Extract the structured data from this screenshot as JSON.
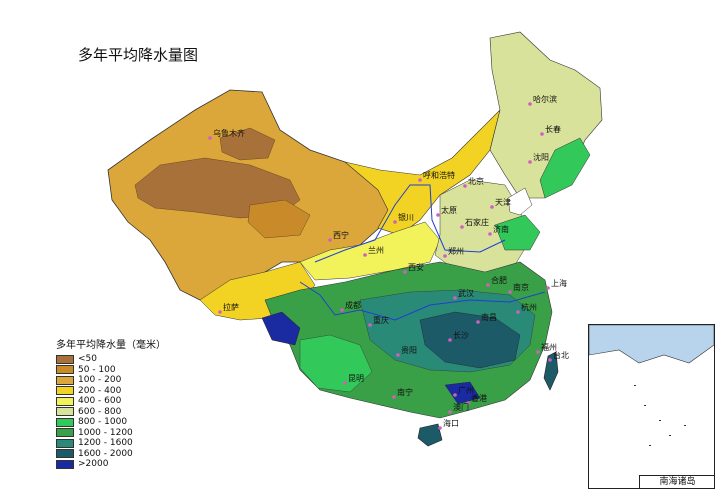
{
  "title": "多年平均降水量图",
  "legend": {
    "title": "多年平均降水量（毫米）",
    "items": [
      {
        "label": "<50",
        "color": "#a8713a"
      },
      {
        "label": "50 - 100",
        "color": "#c98b2a"
      },
      {
        "label": "100 - 200",
        "color": "#dba63a"
      },
      {
        "label": "200 - 400",
        "color": "#f2d324"
      },
      {
        "label": "400 - 600",
        "color": "#f2f25a"
      },
      {
        "label": "600 - 800",
        "color": "#d8e29a"
      },
      {
        "label": "800 - 1000",
        "color": "#32c85a"
      },
      {
        "label": "1000 - 1200",
        "color": "#3aa048"
      },
      {
        "label": "1200 - 1600",
        "color": "#2a8a78"
      },
      {
        "label": "1600 - 2000",
        "color": "#1c5a68"
      },
      {
        "label": ">2000",
        "color": "#1a2aa0"
      }
    ]
  },
  "cities": [
    "乌鲁木齐",
    "哈尔滨",
    "长春",
    "沈阳",
    "呼和浩特",
    "北京",
    "天津",
    "银川",
    "太原",
    "石家庄",
    "济南",
    "西宁",
    "兰州",
    "郑州",
    "西安",
    "合肥",
    "南京",
    "上海",
    "武汉",
    "杭州",
    "成都",
    "重庆",
    "长沙",
    "南昌",
    "拉萨",
    "贵阳",
    "福州",
    "台北",
    "昆明",
    "南宁",
    "广州",
    "香港",
    "澳门",
    "海口"
  ],
  "inset_label": "南海诸岛"
}
